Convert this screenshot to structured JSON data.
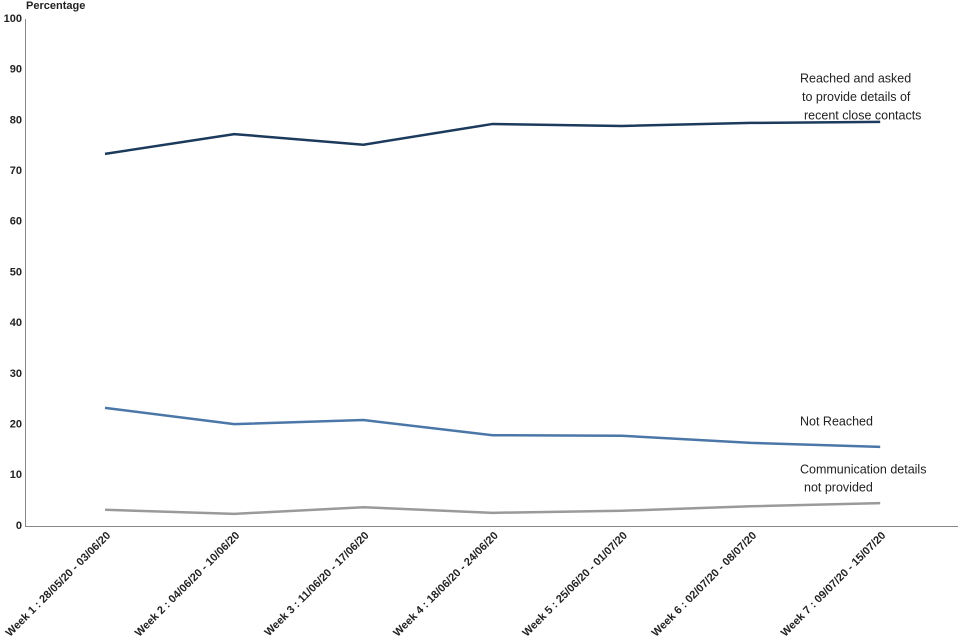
{
  "chart_data": {
    "type": "line",
    "y_label": "Percentage",
    "categories": [
      "Week 1 : 28/05/20 - 03/06/20",
      "Week 2 : 04/06/20 - 10/06/20",
      "Week 3 : 11/06/20 - 17/06/20",
      "Week 4 : 18/06/20 - 24/06/20",
      "Week 5 : 25/06/20 - 01/07/20",
      "Week 6 : 02/07/20 - 08/07/20",
      "Week 7 : 09/07/20 - 15/07/20"
    ],
    "series": [
      {
        "name": [
          "Reached and asked",
          "to provide details of",
          "recent close contacts"
        ],
        "color": "#1b3a5c",
        "values": [
          73.4,
          77.3,
          75.2,
          79.3,
          78.9,
          79.5,
          79.7
        ]
      },
      {
        "name": [
          "Not Reached"
        ],
        "color": "#4a77a8",
        "values": [
          23.3,
          20.1,
          20.9,
          17.9,
          17.8,
          16.4,
          15.6
        ]
      },
      {
        "name": [
          "Communication details",
          "not provided"
        ],
        "color": "#9a9a9a",
        "values": [
          3.2,
          2.4,
          3.7,
          2.6,
          3.0,
          3.9,
          4.5
        ]
      }
    ],
    "ylim": [
      0,
      100
    ],
    "yticks": [
      0,
      10,
      20,
      30,
      40,
      50,
      60,
      70,
      80,
      90,
      100
    ],
    "grid": false
  }
}
